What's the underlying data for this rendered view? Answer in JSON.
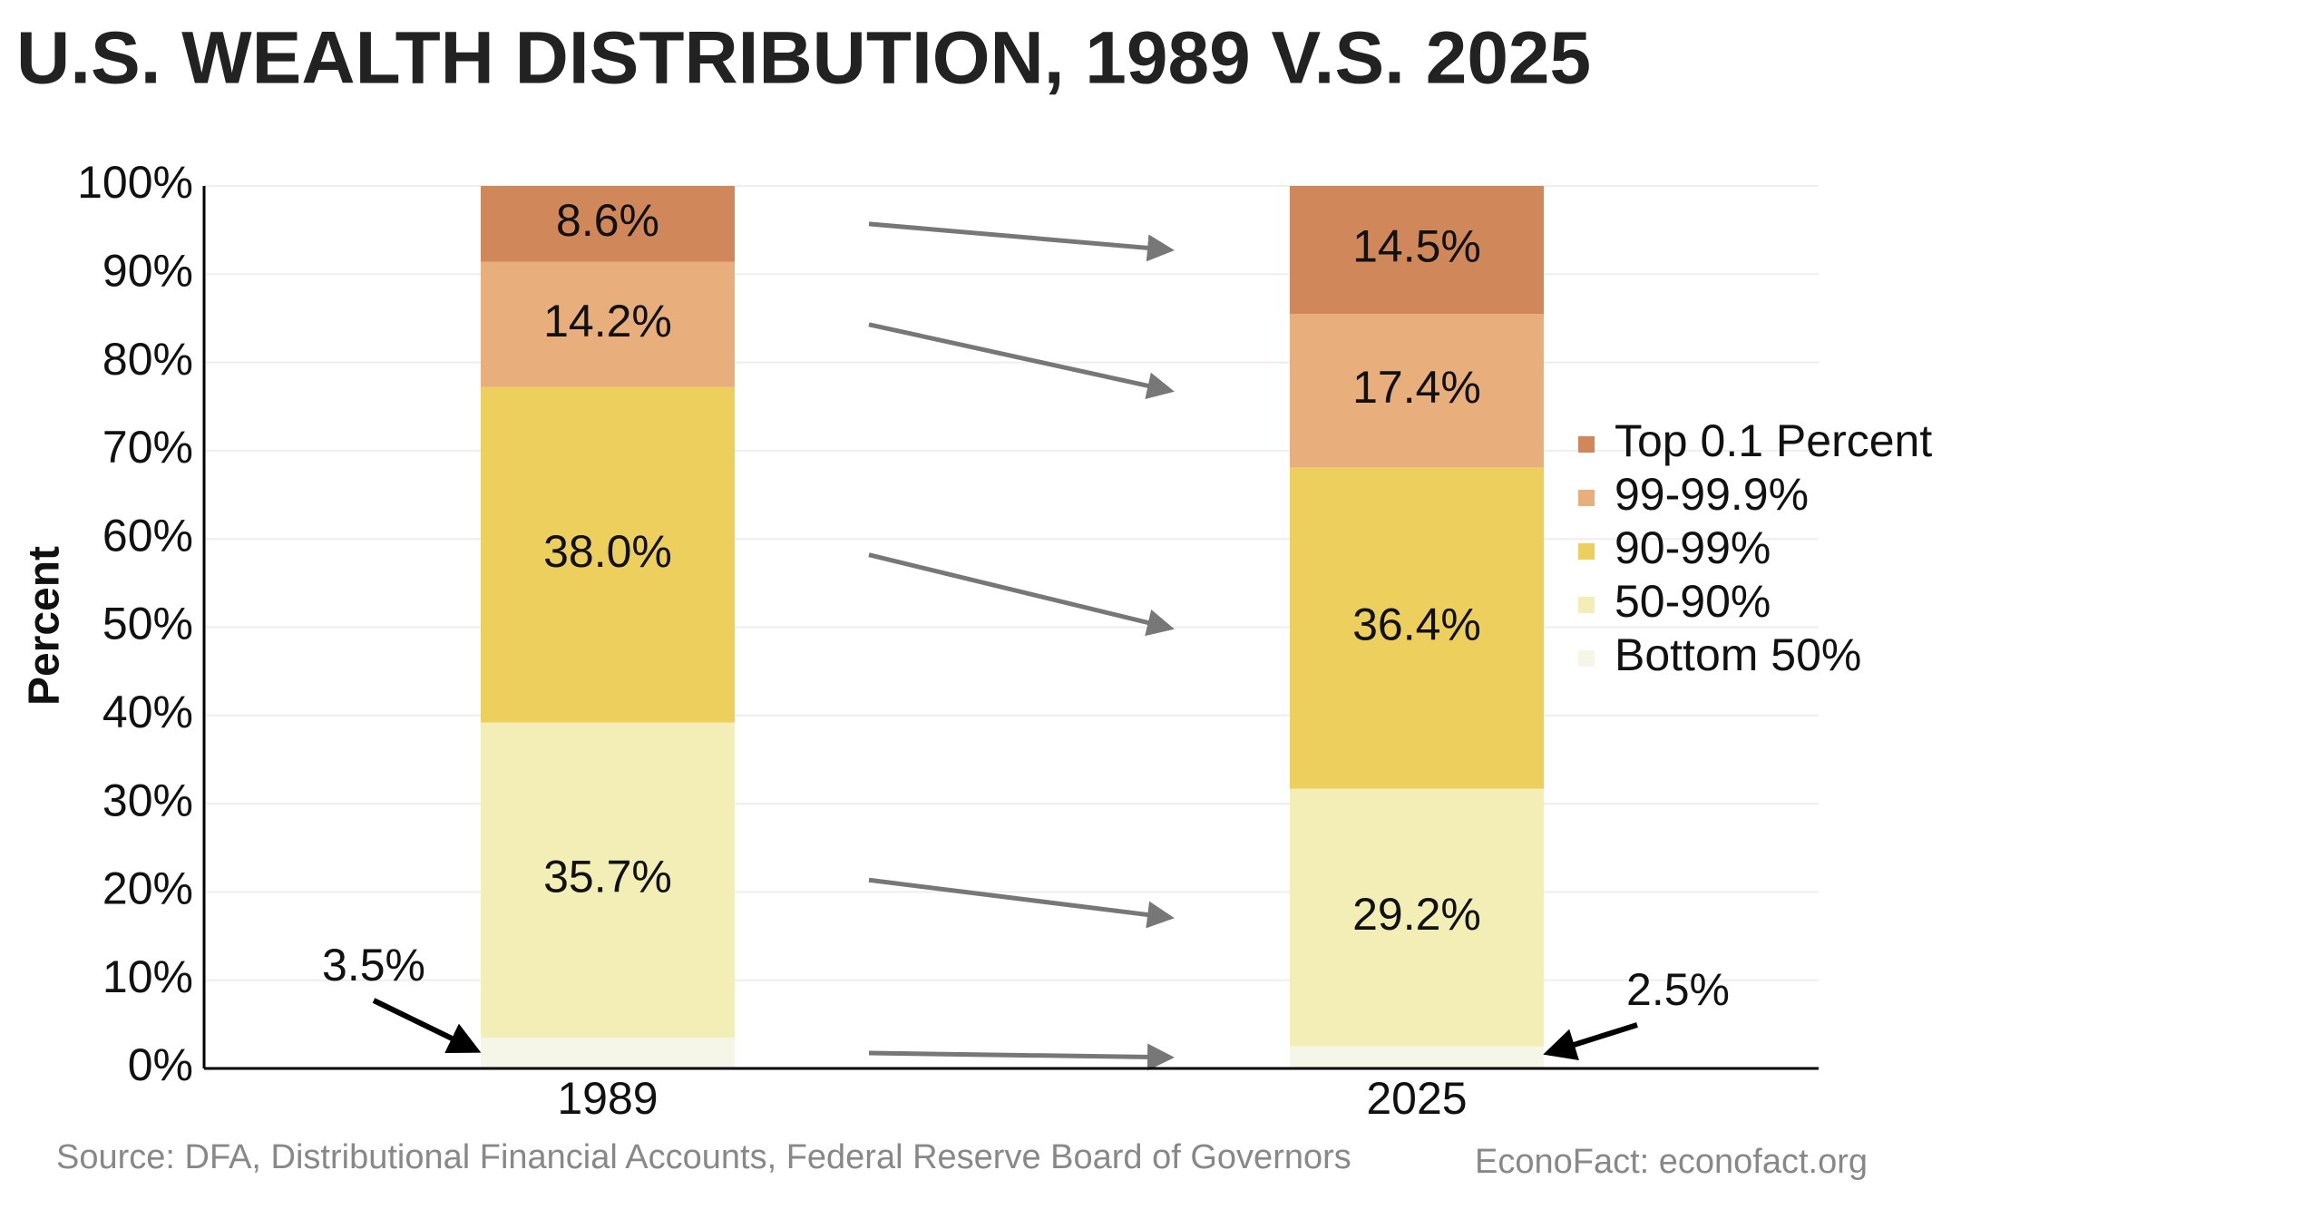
{
  "chart_data": {
    "type": "stacked_bar",
    "title": "U.S. WEALTH DISTRIBUTION, 1989 V.S. 2025",
    "y_label": "Percent",
    "categories": [
      "1989",
      "2025"
    ],
    "series": [
      {
        "name": "Bottom 50%",
        "color": "#f5f6e8",
        "values": [
          3.5,
          2.5
        ],
        "value_labels": [
          "3.5%",
          "2.5%"
        ]
      },
      {
        "name": "50-90%",
        "color": "#f3eeb6",
        "values": [
          35.7,
          29.2
        ],
        "value_labels": [
          "35.7%",
          "29.2%"
        ]
      },
      {
        "name": "90-99%",
        "color": "#edcf5e",
        "values": [
          38.0,
          36.4
        ],
        "value_labels": [
          "38.0%",
          "36.4%"
        ]
      },
      {
        "name": "99-99.9%",
        "color": "#e8ae7c",
        "values": [
          14.2,
          17.4
        ],
        "value_labels": [
          "14.2%",
          "17.4%"
        ]
      },
      {
        "name": "Top 0.1 Percent",
        "color": "#d0885a",
        "values": [
          8.6,
          14.5
        ],
        "value_labels": [
          "8.6%",
          "14.5%"
        ]
      }
    ],
    "ylim": [
      0,
      100
    ],
    "yticks": [
      {
        "value": 0,
        "label": "0%"
      },
      {
        "value": 10,
        "label": "10%"
      },
      {
        "value": 20,
        "label": "20%"
      },
      {
        "value": 30,
        "label": "30%"
      },
      {
        "value": 40,
        "label": "40%"
      },
      {
        "value": 50,
        "label": "50%"
      },
      {
        "value": 60,
        "label": "60%"
      },
      {
        "value": 70,
        "label": "70%"
      },
      {
        "value": 80,
        "label": "80%"
      },
      {
        "value": 90,
        "label": "90%"
      },
      {
        "value": 100,
        "label": "100%"
      }
    ],
    "grid": true,
    "legend": "right",
    "source": "Source: DFA, Distributional Financial Accounts, Federal Reserve Board of Governors",
    "credit": "EconoFact: econofact.org"
  }
}
